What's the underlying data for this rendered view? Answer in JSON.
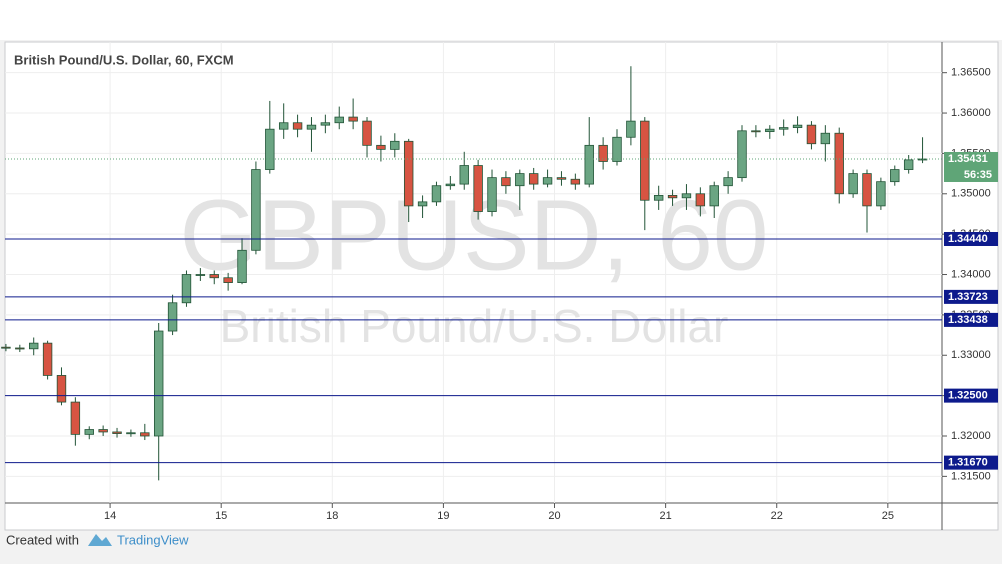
{
  "chart_data": {
    "type": "candlestick",
    "title": "British Pound/U.S. Dollar, 60, FXCM",
    "watermark": "GBPUSD, 60",
    "watermark_subtitle": "British Pound/U.S. Dollar",
    "footer_text": "Created with",
    "footer_brand": "TradingView",
    "up_color": "#6ba583",
    "down_color": "#d75442",
    "outline_color": "#225437",
    "level_color": "#0d1a8c",
    "grid": true,
    "xlim": [
      1.3,
      203.7
    ],
    "xticks": [
      {
        "value": 24,
        "label": "14"
      },
      {
        "value": 48,
        "label": "15"
      },
      {
        "value": 72,
        "label": "18"
      },
      {
        "value": 96,
        "label": "19"
      },
      {
        "value": 120,
        "label": "20"
      },
      {
        "value": 144,
        "label": "21"
      },
      {
        "value": 168,
        "label": "22"
      },
      {
        "value": 192,
        "label": "25"
      }
    ],
    "ylim": [
      1.3117,
      1.3688
    ],
    "yticks": [
      {
        "value": 1.315,
        "label": "1.31500"
      },
      {
        "value": 1.32,
        "label": "1.32000"
      },
      {
        "value": 1.325,
        "label": "1.32500"
      },
      {
        "value": 1.33,
        "label": "1.33000"
      },
      {
        "value": 1.335,
        "label": "1.33500"
      },
      {
        "value": 1.34,
        "label": "1.34000"
      },
      {
        "value": 1.345,
        "label": "1.34500"
      },
      {
        "value": 1.35,
        "label": "1.35000"
      },
      {
        "value": 1.355,
        "label": "1.35500"
      },
      {
        "value": 1.36,
        "label": "1.36000"
      },
      {
        "value": 1.365,
        "label": "1.36500"
      }
    ],
    "levels": [
      {
        "value": 1.3444,
        "label": "1.34440"
      },
      {
        "value": 1.33723,
        "label": "1.33723"
      },
      {
        "value": 1.33438,
        "label": "1.33438"
      },
      {
        "value": 1.325,
        "label": "1.32500"
      },
      {
        "value": 1.3167,
        "label": "1.31670"
      }
    ],
    "last_price": {
      "value": 1.35431,
      "label": "1.35431",
      "color": "#5fa577"
    },
    "countdown": "56:35",
    "x": [
      1.5,
      4.5,
      7.5,
      10.5,
      13.5,
      16.5,
      19.5,
      22.5,
      25.5,
      28.5,
      31.5,
      34.5,
      37.5,
      40.5,
      43.5,
      46.5,
      49.5,
      52.5,
      55.5,
      58.5,
      61.5,
      64.5,
      67.5,
      70.5,
      73.5,
      76.5,
      79.5,
      82.5,
      85.5,
      88.5,
      91.5,
      94.5,
      97.5,
      100.5,
      103.5,
      106.5,
      109.5,
      112.5,
      115.5,
      118.5,
      121.5,
      124.5,
      127.5,
      130.5,
      133.5,
      136.5,
      139.5,
      142.5,
      145.5,
      148.5,
      151.5,
      154.5,
      157.5,
      160.5,
      163.5,
      166.5,
      169.5,
      172.5,
      175.5,
      178.5,
      181.5,
      184.5,
      187.5,
      190.5,
      193.5,
      196.5,
      199.5
    ],
    "open": [
      1.331,
      1.3309,
      1.3308,
      1.3315,
      1.3275,
      1.3242,
      1.3202,
      1.3208,
      1.3205,
      1.3203,
      1.3204,
      1.32,
      1.333,
      1.3365,
      1.34,
      1.34,
      1.3396,
      1.339,
      1.343,
      1.353,
      1.358,
      1.3588,
      1.358,
      1.3585,
      1.3588,
      1.3595,
      1.359,
      1.356,
      1.3555,
      1.3565,
      1.3485,
      1.349,
      1.351,
      1.3512,
      1.3535,
      1.3478,
      1.352,
      1.351,
      1.3525,
      1.3512,
      1.352,
      1.3518,
      1.3512,
      1.356,
      1.354,
      1.357,
      1.359,
      1.3492,
      1.3498,
      1.3495,
      1.35,
      1.3485,
      1.351,
      1.352,
      1.3578,
      1.3577,
      1.358,
      1.3582,
      1.3585,
      1.3562,
      1.3575,
      1.35,
      1.3525,
      1.3485,
      1.3515,
      1.353,
      1.3542
    ],
    "high": [
      1.3314,
      1.3313,
      1.3322,
      1.3318,
      1.3285,
      1.3248,
      1.3212,
      1.3213,
      1.321,
      1.3208,
      1.3215,
      1.334,
      1.3375,
      1.3405,
      1.3408,
      1.3405,
      1.3402,
      1.3445,
      1.354,
      1.3615,
      1.3612,
      1.3598,
      1.3595,
      1.3598,
      1.3608,
      1.3618,
      1.3595,
      1.3572,
      1.3575,
      1.3568,
      1.3498,
      1.3515,
      1.3522,
      1.3552,
      1.3542,
      1.353,
      1.3528,
      1.353,
      1.3532,
      1.353,
      1.3528,
      1.3525,
      1.3595,
      1.357,
      1.358,
      1.3658,
      1.3595,
      1.351,
      1.3505,
      1.3512,
      1.3508,
      1.3515,
      1.3528,
      1.3585,
      1.3585,
      1.3585,
      1.3592,
      1.3596,
      1.359,
      1.3585,
      1.3582,
      1.353,
      1.353,
      1.352,
      1.3535,
      1.3548,
      1.357
    ],
    "low": [
      1.3305,
      1.3304,
      1.33,
      1.327,
      1.3238,
      1.3188,
      1.3196,
      1.32,
      1.3198,
      1.3199,
      1.3195,
      1.3145,
      1.3325,
      1.336,
      1.3392,
      1.3388,
      1.338,
      1.3388,
      1.3425,
      1.3525,
      1.3568,
      1.357,
      1.3552,
      1.3575,
      1.358,
      1.358,
      1.3545,
      1.354,
      1.3545,
      1.3465,
      1.347,
      1.3485,
      1.3505,
      1.3505,
      1.3468,
      1.3472,
      1.35,
      1.348,
      1.3505,
      1.3508,
      1.351,
      1.3505,
      1.3508,
      1.353,
      1.3535,
      1.356,
      1.3455,
      1.348,
      1.3485,
      1.348,
      1.3472,
      1.347,
      1.35,
      1.3515,
      1.357,
      1.3568,
      1.3572,
      1.3575,
      1.3555,
      1.354,
      1.3488,
      1.3495,
      1.3452,
      1.348,
      1.351,
      1.3525,
      1.3538
    ],
    "close": [
      1.3309,
      1.3308,
      1.3315,
      1.3275,
      1.3242,
      1.3202,
      1.3208,
      1.3205,
      1.3203,
      1.3204,
      1.32,
      1.333,
      1.3365,
      1.34,
      1.34,
      1.3396,
      1.339,
      1.343,
      1.353,
      1.358,
      1.3588,
      1.358,
      1.3585,
      1.3588,
      1.3595,
      1.359,
      1.356,
      1.3555,
      1.3565,
      1.3485,
      1.349,
      1.351,
      1.3512,
      1.3535,
      1.3478,
      1.352,
      1.351,
      1.3525,
      1.3512,
      1.352,
      1.3518,
      1.3512,
      1.356,
      1.354,
      1.357,
      1.359,
      1.3492,
      1.3498,
      1.3495,
      1.35,
      1.3485,
      1.351,
      1.352,
      1.3578,
      1.3577,
      1.358,
      1.3582,
      1.3585,
      1.3562,
      1.3575,
      1.35,
      1.3525,
      1.3485,
      1.3515,
      1.353,
      1.3542,
      1.35431
    ]
  }
}
